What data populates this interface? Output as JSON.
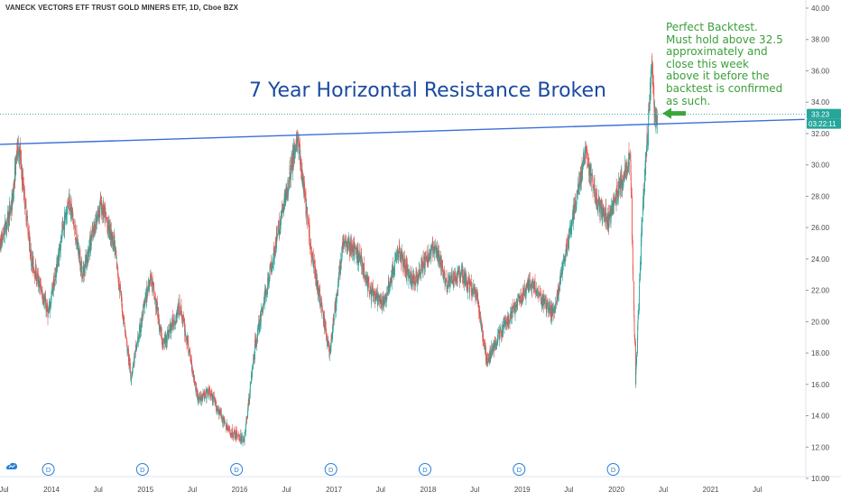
{
  "header": {
    "symbol_title": "VANECK VECTORS ETF TRUST GOLD MINERS ETF, 1D, Cboe BZX"
  },
  "annotations": {
    "headline": "7 Year Horizontal Resistance Broken",
    "note_lines": [
      "Perfect Backtest.",
      "Must hold above 32.5",
      "approximately and",
      "close this week",
      "above it before the",
      "backtest is confirmed",
      "as such."
    ],
    "arrow_icon": "left-arrow-icon"
  },
  "price_scale": {
    "labels": [
      "40.00",
      "38.00",
      "36.00",
      "34.00",
      "32.00",
      "30.00",
      "28.00",
      "26.00",
      "24.00",
      "22.00",
      "20.00",
      "18.00",
      "16.00",
      "14.00",
      "12.00",
      "10.00"
    ],
    "last_price": "33.23",
    "countdown": "03:22:11"
  },
  "time_axis": {
    "labels": [
      "Jul",
      "2014",
      "Jul",
      "2015",
      "Jul",
      "2016",
      "Jul",
      "2017",
      "Jul",
      "2018",
      "Jul",
      "2019",
      "Jul",
      "2020",
      "Jul",
      "2021",
      "Jul"
    ]
  },
  "dividend_marker": "D",
  "colors": {
    "up": "#26a69a",
    "down": "#ef5350",
    "trendline": "#3a6fd8",
    "headline": "#1b4aa1",
    "note": "#3a9f3a",
    "last_price_badge": "#26a69a",
    "price_line": "#26a69a"
  },
  "chart_data": {
    "type": "candlestick",
    "title": "VANECK VECTORS ETF TRUST GOLD MINERS ETF, 1D, Cboe BZX",
    "x_range": [
      "2013-06",
      "2021-12"
    ],
    "ylim": [
      10,
      40.5
    ],
    "price_guide": [
      [
        "2013-06-01",
        24.0
      ],
      [
        "2013-08-01",
        27.5
      ],
      [
        "2013-08-25",
        31.5
      ],
      [
        "2013-10-15",
        24.0
      ],
      [
        "2013-12-20",
        20.5
      ],
      [
        "2014-03-10",
        28.0
      ],
      [
        "2014-05-01",
        23.0
      ],
      [
        "2014-07-10",
        27.5
      ],
      [
        "2014-09-01",
        25.0
      ],
      [
        "2014-11-05",
        16.5
      ],
      [
        "2015-01-20",
        23.0
      ],
      [
        "2015-03-10",
        18.5
      ],
      [
        "2015-05-15",
        21.0
      ],
      [
        "2015-07-25",
        15.0
      ],
      [
        "2015-09-05",
        15.5
      ],
      [
        "2015-11-20",
        13.0
      ],
      [
        "2016-01-19",
        12.5
      ],
      [
        "2016-03-01",
        18.5
      ],
      [
        "2016-04-25",
        23.0
      ],
      [
        "2016-06-15",
        27.0
      ],
      [
        "2016-08-11",
        31.8
      ],
      [
        "2016-10-05",
        24.5
      ],
      [
        "2016-12-15",
        18.0
      ],
      [
        "2017-02-08",
        25.3
      ],
      [
        "2017-04-15",
        24.0
      ],
      [
        "2017-05-20",
        22.0
      ],
      [
        "2017-07-10",
        21.0
      ],
      [
        "2017-09-08",
        24.5
      ],
      [
        "2017-11-01",
        22.5
      ],
      [
        "2018-01-25",
        24.8
      ],
      [
        "2018-03-15",
        22.5
      ],
      [
        "2018-05-10",
        23.0
      ],
      [
        "2018-07-10",
        21.5
      ],
      [
        "2018-08-16",
        17.5
      ],
      [
        "2018-10-15",
        19.5
      ],
      [
        "2019-01-31",
        22.5
      ],
      [
        "2019-03-15",
        21.5
      ],
      [
        "2019-05-02",
        20.5
      ],
      [
        "2019-06-20",
        24.5
      ],
      [
        "2019-09-04",
        30.8
      ],
      [
        "2019-10-20",
        27.5
      ],
      [
        "2019-12-05",
        26.5
      ],
      [
        "2020-01-10",
        28.5
      ],
      [
        "2020-02-24",
        30.5
      ],
      [
        "2020-03-16",
        16.3
      ],
      [
        "2020-04-08",
        26.0
      ],
      [
        "2020-05-18",
        36.5
      ],
      [
        "2020-06-01",
        32.5
      ],
      [
        "2020-06-08",
        33.2
      ]
    ],
    "horizontal_resistance_line": {
      "from": [
        "2013-06-01",
        31.3
      ],
      "to": [
        "2021-12-31",
        32.9
      ]
    },
    "last_price": 33.23
  }
}
